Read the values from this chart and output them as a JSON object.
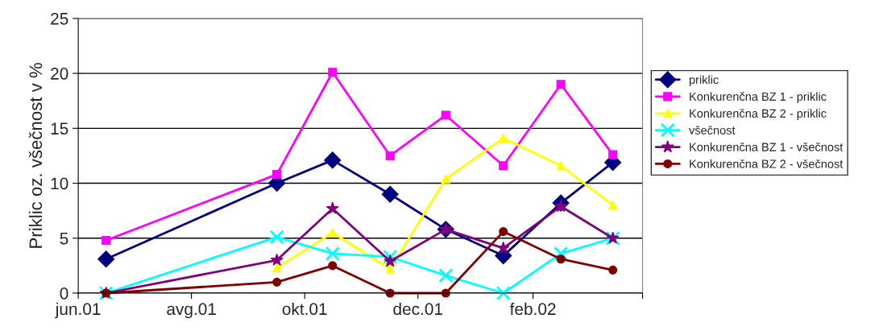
{
  "chart_data": {
    "type": "line",
    "ylabel": "Priklic oz. všečnost v %",
    "x": [
      "2001-06-16",
      "2001-09-16",
      "2001-10-16",
      "2001-11-16",
      "2001-12-16",
      "2002-01-16",
      "2002-02-16",
      "2002-03-16"
    ],
    "xlim": [
      "2001-06-01",
      "2002-04-01"
    ],
    "xticks": [
      {
        "value": "2001-06-01",
        "label": "jun.01"
      },
      {
        "value": "2001-08-01",
        "label": "avg.01"
      },
      {
        "value": "2001-10-01",
        "label": "okt.01"
      },
      {
        "value": "2001-12-01",
        "label": "dec.01"
      },
      {
        "value": "2002-02-01",
        "label": "feb.02"
      },
      {
        "value": "2002-04-01",
        "label": null
      }
    ],
    "ylim": [
      0,
      25
    ],
    "yticks": [
      0,
      5,
      10,
      15,
      20,
      25
    ],
    "grid": "y",
    "legend": "right",
    "series": [
      {
        "name": "priklic",
        "color": "#000080",
        "marker": "diamond",
        "values": [
          3.1,
          10.0,
          12.1,
          9.0,
          5.8,
          3.4,
          8.2,
          11.9
        ]
      },
      {
        "name": "Konkurenčna BZ 1 - priklic",
        "color": "#ff00ff",
        "marker": "square",
        "values": [
          4.8,
          10.8,
          20.1,
          12.5,
          16.2,
          11.6,
          19.0,
          12.6
        ]
      },
      {
        "name": "Konkurenčna BZ 2 - priklic",
        "color": "#ffff00",
        "marker": "triangle",
        "values": [
          null,
          2.3,
          5.5,
          2.2,
          10.4,
          14.1,
          11.6,
          8.0
        ]
      },
      {
        "name": "všečnost",
        "color": "#00ffff",
        "marker": "cross",
        "values": [
          0,
          5.1,
          3.6,
          3.3,
          1.6,
          0,
          3.6,
          5.0
        ]
      },
      {
        "name": "Konkurenčna BZ 1 - všečnost",
        "color": "#800080",
        "marker": "star",
        "values": [
          0,
          3.0,
          7.7,
          2.9,
          5.8,
          4.1,
          7.9,
          5.0
        ]
      },
      {
        "name": "Konkurenčna BZ 2 - všečnost",
        "color": "#800000",
        "marker": "circle",
        "values": [
          0,
          1.0,
          2.5,
          0,
          0,
          5.6,
          3.1,
          2.1
        ]
      }
    ]
  }
}
